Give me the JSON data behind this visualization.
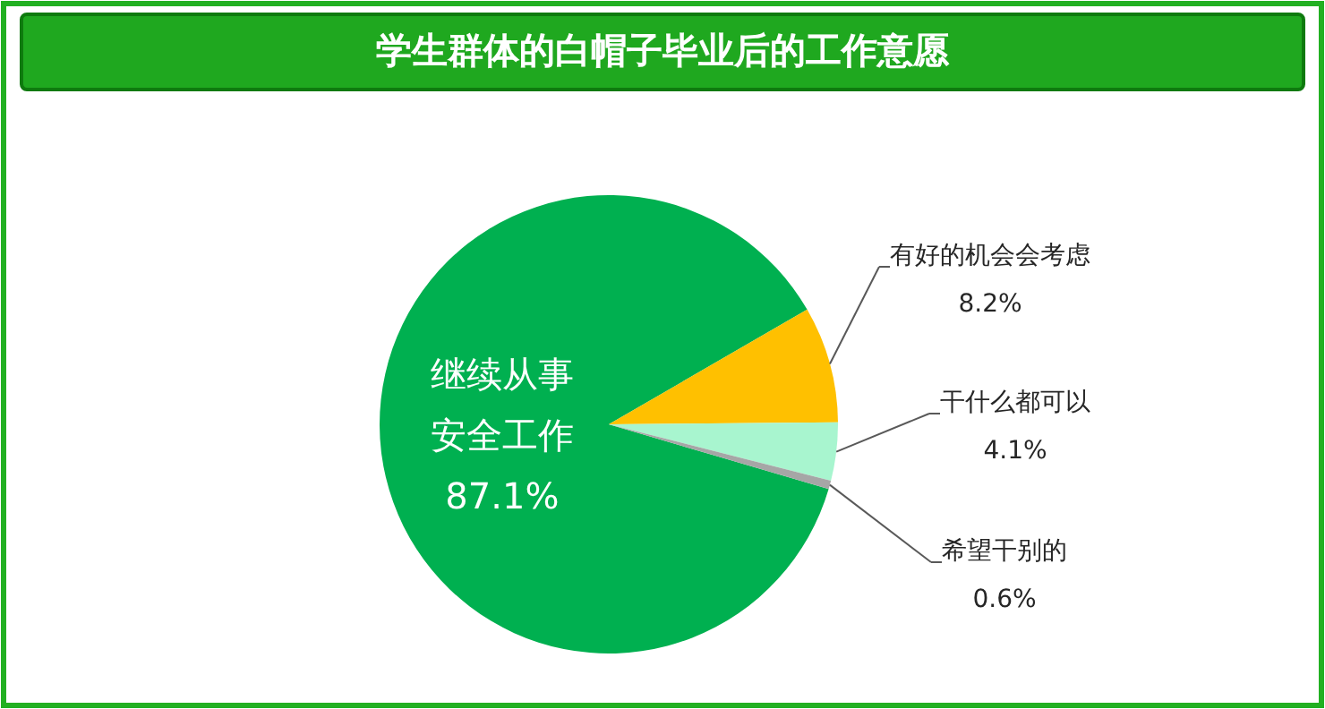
{
  "chart_data": {
    "type": "pie",
    "title": "学生群体的白帽子毕业后的工作意愿",
    "categories": [
      "继续从事安全工作",
      "有好的机会会考虑",
      "干什么都可以",
      "希望干别的"
    ],
    "values": [
      87.1,
      8.2,
      4.1,
      0.6
    ],
    "value_labels": [
      "87.1%",
      "8.2%",
      "4.1%",
      "0.6%"
    ],
    "colors": [
      "#00b050",
      "#ffc000",
      "#a8f5cf",
      "#a6a6a6"
    ]
  }
}
